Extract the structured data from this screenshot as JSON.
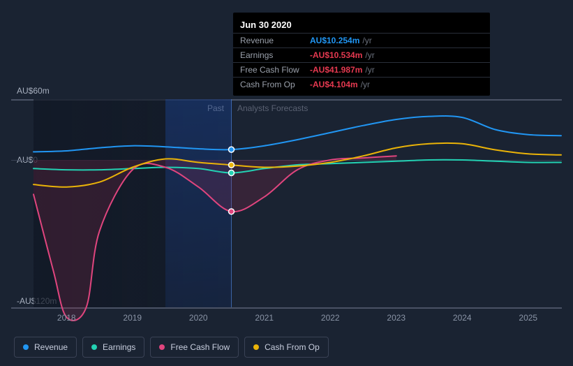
{
  "tooltip": {
    "date": "Jun 30 2020",
    "rows": [
      {
        "label": "Revenue",
        "value": "AU$10.254m",
        "unit": "/yr",
        "color": "#2196f3"
      },
      {
        "label": "Earnings",
        "value": "-AU$10.534m",
        "unit": "/yr",
        "color": "#e53950"
      },
      {
        "label": "Free Cash Flow",
        "value": "-AU$41.987m",
        "unit": "/yr",
        "color": "#e53950"
      },
      {
        "label": "Cash From Op",
        "value": "-AU$4.104m",
        "unit": "/yr",
        "color": "#e53950"
      }
    ]
  },
  "section_labels": {
    "past": "Past",
    "forecast": "Analysts Forecasts"
  },
  "chart": {
    "type": "line",
    "background_color": "#1a2332",
    "grid_color": "#3a4255",
    "y_axis": {
      "ticks": [
        {
          "label": "AU$60m",
          "value": 60
        },
        {
          "label": "AU$0",
          "value": 0
        },
        {
          "label": "-AU$120m",
          "value": -120
        }
      ],
      "ylim_top": 60,
      "ylim_bottom": -120
    },
    "x_axis": {
      "min": 2017.5,
      "max": 2025.5,
      "ticks": [
        2018,
        2019,
        2020,
        2021,
        2022,
        2023,
        2024,
        2025
      ]
    },
    "past_end_x": 2020.5,
    "highlight_band": {
      "start": 2019.5,
      "end": 2020.5
    },
    "cursor_x": 2020.5,
    "line_width": 2,
    "series": [
      {
        "name": "Revenue",
        "color": "#2196f3",
        "fill_opacity": 0,
        "points": [
          {
            "x": 2017.5,
            "y": 8
          },
          {
            "x": 2018,
            "y": 9
          },
          {
            "x": 2018.5,
            "y": 12
          },
          {
            "x": 2019,
            "y": 14
          },
          {
            "x": 2019.5,
            "y": 13
          },
          {
            "x": 2020,
            "y": 11
          },
          {
            "x": 2020.5,
            "y": 10.254
          },
          {
            "x": 2021,
            "y": 14
          },
          {
            "x": 2021.5,
            "y": 20
          },
          {
            "x": 2022,
            "y": 27
          },
          {
            "x": 2022.5,
            "y": 34
          },
          {
            "x": 2023,
            "y": 40
          },
          {
            "x": 2023.5,
            "y": 43
          },
          {
            "x": 2024,
            "y": 42
          },
          {
            "x": 2024.5,
            "y": 30
          },
          {
            "x": 2025,
            "y": 25
          },
          {
            "x": 2025.5,
            "y": 24
          }
        ]
      },
      {
        "name": "Earnings",
        "color": "#23d1b3",
        "fill_opacity": 0,
        "points": [
          {
            "x": 2017.5,
            "y": -7
          },
          {
            "x": 2018,
            "y": -8
          },
          {
            "x": 2018.5,
            "y": -8
          },
          {
            "x": 2019,
            "y": -7
          },
          {
            "x": 2019.5,
            "y": -6
          },
          {
            "x": 2020,
            "y": -7
          },
          {
            "x": 2020.5,
            "y": -10.534
          },
          {
            "x": 2021,
            "y": -7
          },
          {
            "x": 2021.5,
            "y": -4
          },
          {
            "x": 2022,
            "y": -3
          },
          {
            "x": 2022.5,
            "y": -2
          },
          {
            "x": 2023,
            "y": -1
          },
          {
            "x": 2023.5,
            "y": 0
          },
          {
            "x": 2024,
            "y": 0
          },
          {
            "x": 2024.5,
            "y": -1
          },
          {
            "x": 2025,
            "y": -2
          },
          {
            "x": 2025.5,
            "y": -2
          }
        ]
      },
      {
        "name": "Free Cash Flow",
        "color": "#e0457e",
        "fill_opacity": 0.22,
        "fill_color": "#9c2b4f",
        "points": [
          {
            "x": 2017.5,
            "y": -28
          },
          {
            "x": 2017.8,
            "y": -90
          },
          {
            "x": 2018,
            "y": -128
          },
          {
            "x": 2018.3,
            "y": -120
          },
          {
            "x": 2018.5,
            "y": -58
          },
          {
            "x": 2019,
            "y": -8
          },
          {
            "x": 2019.5,
            "y": -6
          },
          {
            "x": 2020,
            "y": -22
          },
          {
            "x": 2020.5,
            "y": -41.987
          },
          {
            "x": 2021,
            "y": -30
          },
          {
            "x": 2021.5,
            "y": -8
          },
          {
            "x": 2022,
            "y": 0
          },
          {
            "x": 2022.5,
            "y": 2
          },
          {
            "x": 2023,
            "y": 4
          }
        ]
      },
      {
        "name": "Cash From Op",
        "color": "#eab308",
        "fill_opacity": 0,
        "points": [
          {
            "x": 2017.5,
            "y": -20
          },
          {
            "x": 2018,
            "y": -22
          },
          {
            "x": 2018.5,
            "y": -18
          },
          {
            "x": 2019,
            "y": -6
          },
          {
            "x": 2019.5,
            "y": 1
          },
          {
            "x": 2020,
            "y": -2
          },
          {
            "x": 2020.5,
            "y": -4.104
          },
          {
            "x": 2021,
            "y": -6
          },
          {
            "x": 2021.5,
            "y": -5
          },
          {
            "x": 2022,
            "y": -2
          },
          {
            "x": 2022.5,
            "y": 4
          },
          {
            "x": 2023,
            "y": 12
          },
          {
            "x": 2023.5,
            "y": 16
          },
          {
            "x": 2024,
            "y": 16
          },
          {
            "x": 2024.5,
            "y": 10
          },
          {
            "x": 2025,
            "y": 6
          },
          {
            "x": 2025.5,
            "y": 5
          }
        ]
      }
    ]
  },
  "legend": [
    {
      "label": "Revenue",
      "color": "#2196f3"
    },
    {
      "label": "Earnings",
      "color": "#23d1b3"
    },
    {
      "label": "Free Cash Flow",
      "color": "#e0457e"
    },
    {
      "label": "Cash From Op",
      "color": "#eab308"
    }
  ]
}
